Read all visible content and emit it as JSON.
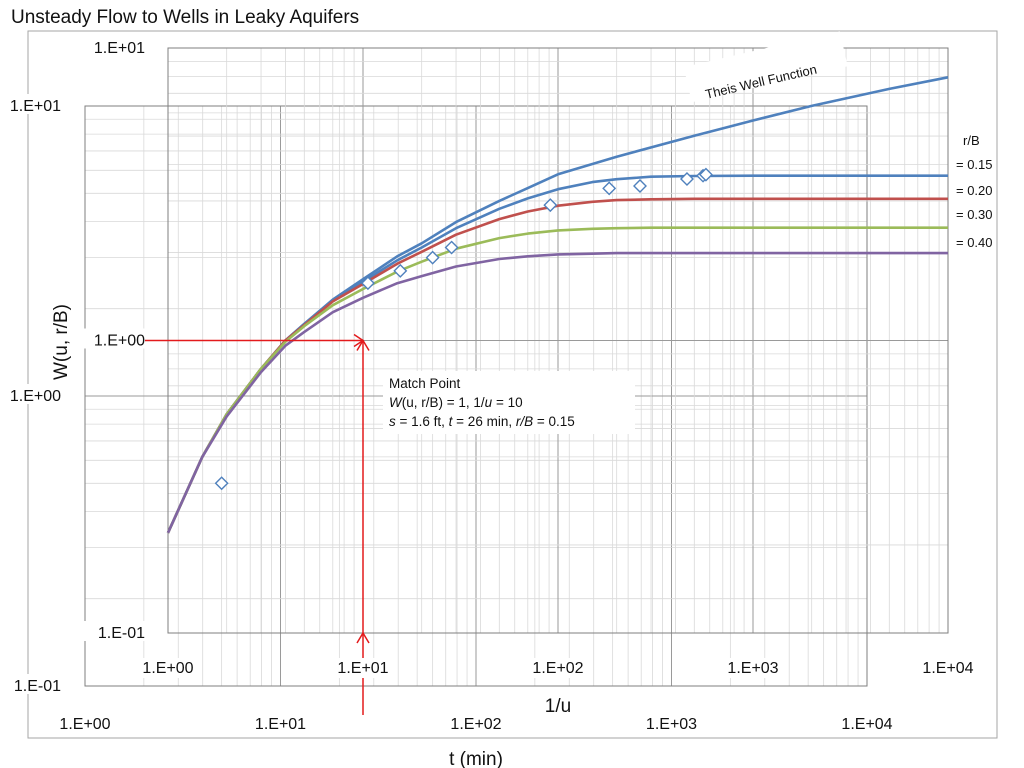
{
  "page": {
    "title": "Unsteady Flow to Wells in Leaky Aquifers"
  },
  "match_point": {
    "heading": "Match Point",
    "w_label": "W",
    "w_args": "(u, r/B)",
    "w_value": " = 1, 1/",
    "u_label": "u",
    "u_value": " = 10",
    "s_label": "s",
    "s_value": " = 1.6 ft, ",
    "t_label": "t",
    "t_value": " = 26 min, ",
    "rb_label": "r/B",
    "rb_value": " = 0.15"
  },
  "curve_labels": {
    "header": "r/B",
    "items": [
      "= 0.15",
      "= 0.20",
      "= 0.30",
      "= 0.40"
    ]
  },
  "chart_data": [
    {
      "type": "line",
      "title": "",
      "xlabel": "1/u",
      "ylabel": "W(u, r/B)",
      "xscale": "log",
      "yscale": "log",
      "xlim": [
        1,
        10000
      ],
      "ylim": [
        0.1,
        10
      ],
      "x_tick_labels": [
        "1.E+00",
        "1.E+01",
        "1.E+02",
        "1.E+03",
        "1.E+04"
      ],
      "y_tick_labels": [
        "1.E-01",
        "1.E+00",
        "1.E+01"
      ],
      "grid": true,
      "legend": "none",
      "annotation": "Theis Well Function",
      "series": [
        {
          "name": "Theis Well Function",
          "color": "#4f81bd",
          "x": [
            1,
            1.5,
            2,
            3,
            4,
            5,
            7,
            10,
            15,
            20,
            30,
            50,
            70,
            100,
            200,
            500,
            1000,
            2000,
            5000,
            10000
          ],
          "y": [
            0.22,
            0.4,
            0.56,
            0.8,
            1.0,
            1.14,
            1.38,
            1.62,
            1.94,
            2.15,
            2.54,
            3.0,
            3.32,
            3.7,
            4.25,
            5.01,
            5.65,
            6.34,
            7.25,
            7.94
          ]
        },
        {
          "name": "r/B = 0.15",
          "color": "#4f81bd",
          "x": [
            1,
            1.5,
            2,
            3,
            4,
            5,
            7,
            10,
            15,
            20,
            30,
            50,
            70,
            100,
            150,
            200,
            300,
            500,
            1000,
            10000
          ],
          "y": [
            0.22,
            0.4,
            0.56,
            0.8,
            1.0,
            1.14,
            1.37,
            1.59,
            1.88,
            2.08,
            2.42,
            2.82,
            3.06,
            3.29,
            3.48,
            3.56,
            3.63,
            3.65,
            3.66,
            3.66
          ]
        },
        {
          "name": "r/B = 0.20",
          "color": "#c0504d",
          "x": [
            1,
            1.5,
            2,
            3,
            4,
            5,
            7,
            10,
            15,
            20,
            30,
            50,
            70,
            100,
            150,
            200,
            300,
            500,
            1000,
            10000
          ],
          "y": [
            0.22,
            0.4,
            0.56,
            0.8,
            1.0,
            1.13,
            1.36,
            1.56,
            1.83,
            2.01,
            2.3,
            2.6,
            2.76,
            2.89,
            2.98,
            3.02,
            3.04,
            3.05,
            3.05,
            3.05
          ]
        },
        {
          "name": "r/B = 0.30",
          "color": "#9bbb59",
          "x": [
            1,
            1.5,
            2,
            3,
            4,
            5,
            7,
            10,
            15,
            20,
            30,
            50,
            70,
            100,
            150,
            200,
            300,
            500,
            1000,
            10000
          ],
          "y": [
            0.22,
            0.4,
            0.56,
            0.8,
            0.99,
            1.12,
            1.32,
            1.5,
            1.72,
            1.86,
            2.06,
            2.24,
            2.32,
            2.38,
            2.41,
            2.42,
            2.43,
            2.43,
            2.43,
            2.43
          ]
        },
        {
          "name": "r/B = 0.40",
          "color": "#8064a2",
          "x": [
            1,
            1.5,
            2,
            3,
            4,
            5,
            7,
            10,
            15,
            20,
            30,
            50,
            70,
            100,
            150,
            200,
            300,
            500,
            1000,
            10000
          ],
          "y": [
            0.22,
            0.4,
            0.55,
            0.78,
            0.96,
            1.07,
            1.25,
            1.4,
            1.57,
            1.66,
            1.79,
            1.9,
            1.94,
            1.97,
            1.98,
            1.99,
            1.99,
            1.99,
            1.99,
            1.99
          ]
        }
      ]
    },
    {
      "type": "scatter",
      "title": "",
      "xlabel": "t (min)",
      "ylabel": "",
      "xscale": "log",
      "yscale": "log",
      "xlim": [
        1,
        10000
      ],
      "ylim": [
        0.1,
        10
      ],
      "x_tick_labels": [
        "1.E+00",
        "1.E+01",
        "1.E+02",
        "1.E+03",
        "1.E+04"
      ],
      "y_tick_labels": [
        "1.E-01",
        "1.E+00",
        "1.E+01"
      ],
      "grid": true,
      "legend": "none",
      "series": [
        {
          "marker": "open-diamond",
          "color": "#4f81bd",
          "x": [
            5,
            28,
            41,
            60,
            75,
            240,
            480,
            690,
            1200,
            1450,
            1500
          ],
          "y": [
            0.5,
            2.45,
            2.7,
            3.0,
            3.25,
            4.55,
            5.2,
            5.3,
            5.6,
            5.75,
            5.8
          ]
        }
      ]
    }
  ],
  "match_guides": {
    "color": "#e31a1c",
    "one_over_u": 10,
    "w_value": 1
  }
}
